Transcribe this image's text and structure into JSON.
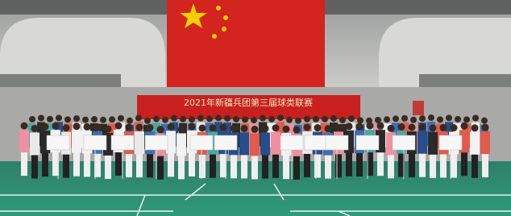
{
  "banner": {
    "text": "2021年新疆兵团第三届球类联赛"
  }
}
